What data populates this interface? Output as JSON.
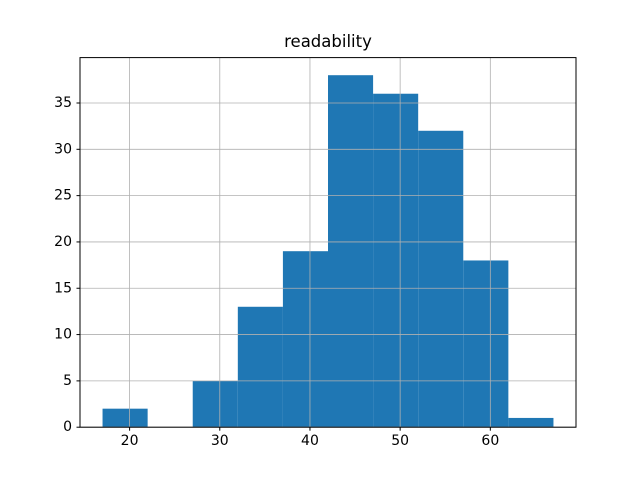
{
  "title": "readability",
  "colors": {
    "bar": "#1f77b4",
    "grid": "#b0b0b0",
    "spine": "#000000",
    "background": "#ffffff",
    "tick_label": "#000000"
  },
  "chart_data": {
    "type": "bar",
    "subtype": "histogram",
    "title": "readability",
    "bin_edges": [
      17,
      22,
      27,
      32,
      37,
      42,
      47,
      52,
      57,
      62,
      67
    ],
    "counts": [
      2,
      0,
      5,
      13,
      19,
      38,
      36,
      32,
      18,
      1
    ],
    "xlabel": "",
    "ylabel": "",
    "xlim": [
      14.5,
      69.5
    ],
    "ylim": [
      0,
      39.9
    ],
    "xticks": [
      20,
      30,
      40,
      50,
      60
    ],
    "yticks": [
      0,
      5,
      10,
      15,
      20,
      25,
      30,
      35
    ],
    "grid": true,
    "grid_on_top": true,
    "legend": null,
    "bar_color": "#1f77b4"
  }
}
